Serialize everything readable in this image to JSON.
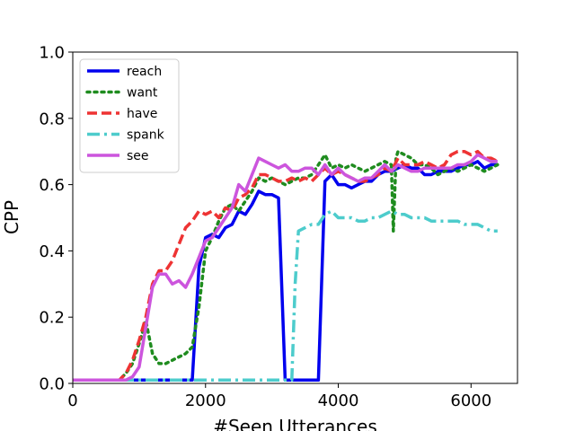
{
  "chart_data": {
    "type": "line",
    "xlabel": "#Seen Utterances",
    "ylabel": "CPP",
    "xlim": [
      0,
      6700
    ],
    "ylim": [
      0.0,
      1.0
    ],
    "xticks": [
      0,
      2000,
      4000,
      6000
    ],
    "xtick_labels": [
      "0",
      "2000",
      "4000",
      "6000"
    ],
    "yticks": [
      0.0,
      0.2,
      0.4,
      0.6,
      0.8,
      1.0
    ],
    "ytick_labels": [
      "0.0",
      "0.2",
      "0.4",
      "0.6",
      "0.8",
      "1.0"
    ],
    "grid": false,
    "legend_position": "top-left",
    "series": [
      {
        "name": "reach",
        "color": "#0000ee",
        "dash": "solid",
        "points": [
          [
            0,
            0.01
          ],
          [
            1800,
            0.01
          ],
          [
            1900,
            0.35
          ],
          [
            2000,
            0.44
          ],
          [
            2100,
            0.45
          ],
          [
            2200,
            0.44
          ],
          [
            2300,
            0.47
          ],
          [
            2400,
            0.48
          ],
          [
            2500,
            0.52
          ],
          [
            2600,
            0.51
          ],
          [
            2700,
            0.54
          ],
          [
            2800,
            0.58
          ],
          [
            2900,
            0.57
          ],
          [
            3000,
            0.57
          ],
          [
            3100,
            0.56
          ],
          [
            3200,
            0.01
          ],
          [
            3700,
            0.01
          ],
          [
            3800,
            0.61
          ],
          [
            3900,
            0.63
          ],
          [
            4000,
            0.6
          ],
          [
            4100,
            0.6
          ],
          [
            4200,
            0.59
          ],
          [
            4300,
            0.6
          ],
          [
            4400,
            0.61
          ],
          [
            4500,
            0.61
          ],
          [
            4600,
            0.63
          ],
          [
            4700,
            0.64
          ],
          [
            4800,
            0.64
          ],
          [
            4900,
            0.65
          ],
          [
            5000,
            0.66
          ],
          [
            5100,
            0.65
          ],
          [
            5200,
            0.65
          ],
          [
            5300,
            0.63
          ],
          [
            5400,
            0.63
          ],
          [
            5500,
            0.64
          ],
          [
            5600,
            0.64
          ],
          [
            5700,
            0.64
          ],
          [
            5800,
            0.65
          ],
          [
            5900,
            0.66
          ],
          [
            6000,
            0.66
          ],
          [
            6100,
            0.67
          ],
          [
            6200,
            0.65
          ],
          [
            6300,
            0.66
          ],
          [
            6400,
            0.66
          ]
        ]
      },
      {
        "name": "want",
        "color": "#1f8c1f",
        "dash": "dotted",
        "points": [
          [
            0,
            0.01
          ],
          [
            700,
            0.01
          ],
          [
            800,
            0.03
          ],
          [
            900,
            0.06
          ],
          [
            1000,
            0.12
          ],
          [
            1100,
            0.19
          ],
          [
            1200,
            0.09
          ],
          [
            1300,
            0.06
          ],
          [
            1400,
            0.06
          ],
          [
            1500,
            0.07
          ],
          [
            1600,
            0.08
          ],
          [
            1700,
            0.09
          ],
          [
            1800,
            0.11
          ],
          [
            1900,
            0.23
          ],
          [
            2000,
            0.4
          ],
          [
            2100,
            0.44
          ],
          [
            2200,
            0.49
          ],
          [
            2300,
            0.53
          ],
          [
            2400,
            0.54
          ],
          [
            2500,
            0.52
          ],
          [
            2600,
            0.55
          ],
          [
            2700,
            0.58
          ],
          [
            2800,
            0.62
          ],
          [
            2900,
            0.61
          ],
          [
            3000,
            0.62
          ],
          [
            3100,
            0.61
          ],
          [
            3200,
            0.6
          ],
          [
            3300,
            0.61
          ],
          [
            3400,
            0.62
          ],
          [
            3500,
            0.62
          ],
          [
            3600,
            0.63
          ],
          [
            3700,
            0.66
          ],
          [
            3800,
            0.69
          ],
          [
            3900,
            0.65
          ],
          [
            4000,
            0.66
          ],
          [
            4100,
            0.65
          ],
          [
            4200,
            0.66
          ],
          [
            4300,
            0.65
          ],
          [
            4400,
            0.64
          ],
          [
            4500,
            0.65
          ],
          [
            4600,
            0.66
          ],
          [
            4700,
            0.67
          ],
          [
            4800,
            0.66
          ],
          [
            4830,
            0.46
          ],
          [
            4870,
            0.68
          ],
          [
            4900,
            0.7
          ],
          [
            5000,
            0.69
          ],
          [
            5100,
            0.68
          ],
          [
            5200,
            0.66
          ],
          [
            5300,
            0.66
          ],
          [
            5400,
            0.65
          ],
          [
            5500,
            0.63
          ],
          [
            5600,
            0.64
          ],
          [
            5700,
            0.65
          ],
          [
            5800,
            0.64
          ],
          [
            5900,
            0.65
          ],
          [
            6000,
            0.66
          ],
          [
            6100,
            0.65
          ],
          [
            6200,
            0.64
          ],
          [
            6300,
            0.65
          ],
          [
            6400,
            0.66
          ]
        ]
      },
      {
        "name": "have",
        "color": "#ee3333",
        "dash": "dashed",
        "points": [
          [
            0,
            0.01
          ],
          [
            700,
            0.01
          ],
          [
            800,
            0.03
          ],
          [
            900,
            0.07
          ],
          [
            1000,
            0.13
          ],
          [
            1100,
            0.2
          ],
          [
            1200,
            0.3
          ],
          [
            1300,
            0.34
          ],
          [
            1400,
            0.34
          ],
          [
            1500,
            0.37
          ],
          [
            1600,
            0.42
          ],
          [
            1700,
            0.47
          ],
          [
            1800,
            0.49
          ],
          [
            1900,
            0.52
          ],
          [
            2000,
            0.51
          ],
          [
            2100,
            0.52
          ],
          [
            2200,
            0.5
          ],
          [
            2300,
            0.53
          ],
          [
            2400,
            0.52
          ],
          [
            2500,
            0.56
          ],
          [
            2600,
            0.57
          ],
          [
            2700,
            0.59
          ],
          [
            2800,
            0.63
          ],
          [
            2900,
            0.63
          ],
          [
            3000,
            0.62
          ],
          [
            3100,
            0.61
          ],
          [
            3200,
            0.61
          ],
          [
            3300,
            0.62
          ],
          [
            3400,
            0.61
          ],
          [
            3500,
            0.62
          ],
          [
            3600,
            0.61
          ],
          [
            3700,
            0.63
          ],
          [
            3800,
            0.65
          ],
          [
            3900,
            0.63
          ],
          [
            4000,
            0.64
          ],
          [
            4100,
            0.63
          ],
          [
            4200,
            0.62
          ],
          [
            4300,
            0.61
          ],
          [
            4400,
            0.61
          ],
          [
            4500,
            0.62
          ],
          [
            4600,
            0.63
          ],
          [
            4700,
            0.65
          ],
          [
            4800,
            0.64
          ],
          [
            4900,
            0.68
          ],
          [
            5000,
            0.66
          ],
          [
            5100,
            0.66
          ],
          [
            5200,
            0.66
          ],
          [
            5300,
            0.67
          ],
          [
            5400,
            0.66
          ],
          [
            5500,
            0.65
          ],
          [
            5600,
            0.66
          ],
          [
            5700,
            0.69
          ],
          [
            5800,
            0.7
          ],
          [
            5900,
            0.7
          ],
          [
            6000,
            0.69
          ],
          [
            6100,
            0.7
          ],
          [
            6200,
            0.68
          ],
          [
            6300,
            0.68
          ],
          [
            6400,
            0.67
          ]
        ]
      },
      {
        "name": "spank",
        "color": "#4dcccc",
        "dash": "dashdot",
        "points": [
          [
            0,
            0.01
          ],
          [
            3300,
            0.01
          ],
          [
            3350,
            0.3
          ],
          [
            3400,
            0.46
          ],
          [
            3500,
            0.47
          ],
          [
            3600,
            0.48
          ],
          [
            3700,
            0.48
          ],
          [
            3800,
            0.51
          ],
          [
            3900,
            0.52
          ],
          [
            4000,
            0.5
          ],
          [
            4100,
            0.5
          ],
          [
            4200,
            0.5
          ],
          [
            4300,
            0.49
          ],
          [
            4400,
            0.49
          ],
          [
            4500,
            0.5
          ],
          [
            4600,
            0.5
          ],
          [
            4700,
            0.51
          ],
          [
            4800,
            0.52
          ],
          [
            4900,
            0.51
          ],
          [
            5000,
            0.51
          ],
          [
            5100,
            0.5
          ],
          [
            5200,
            0.5
          ],
          [
            5300,
            0.5
          ],
          [
            5400,
            0.49
          ],
          [
            5500,
            0.49
          ],
          [
            5600,
            0.49
          ],
          [
            5700,
            0.49
          ],
          [
            5800,
            0.49
          ],
          [
            5900,
            0.48
          ],
          [
            6000,
            0.48
          ],
          [
            6100,
            0.48
          ],
          [
            6200,
            0.47
          ],
          [
            6300,
            0.46
          ],
          [
            6400,
            0.46
          ]
        ]
      },
      {
        "name": "see",
        "color": "#cc55dd",
        "dash": "solid",
        "points": [
          [
            0,
            0.01
          ],
          [
            700,
            0.01
          ],
          [
            800,
            0.01
          ],
          [
            900,
            0.02
          ],
          [
            1000,
            0.05
          ],
          [
            1100,
            0.17
          ],
          [
            1200,
            0.29
          ],
          [
            1300,
            0.33
          ],
          [
            1400,
            0.33
          ],
          [
            1500,
            0.3
          ],
          [
            1600,
            0.31
          ],
          [
            1700,
            0.29
          ],
          [
            1800,
            0.33
          ],
          [
            1900,
            0.38
          ],
          [
            2000,
            0.43
          ],
          [
            2100,
            0.44
          ],
          [
            2200,
            0.47
          ],
          [
            2300,
            0.5
          ],
          [
            2400,
            0.53
          ],
          [
            2500,
            0.6
          ],
          [
            2600,
            0.58
          ],
          [
            2700,
            0.63
          ],
          [
            2800,
            0.68
          ],
          [
            2900,
            0.67
          ],
          [
            3000,
            0.66
          ],
          [
            3100,
            0.65
          ],
          [
            3200,
            0.66
          ],
          [
            3300,
            0.64
          ],
          [
            3400,
            0.64
          ],
          [
            3500,
            0.65
          ],
          [
            3600,
            0.65
          ],
          [
            3700,
            0.63
          ],
          [
            3800,
            0.66
          ],
          [
            3900,
            0.63
          ],
          [
            4000,
            0.65
          ],
          [
            4100,
            0.63
          ],
          [
            4200,
            0.62
          ],
          [
            4300,
            0.61
          ],
          [
            4400,
            0.62
          ],
          [
            4500,
            0.62
          ],
          [
            4600,
            0.64
          ],
          [
            4700,
            0.66
          ],
          [
            4800,
            0.64
          ],
          [
            4900,
            0.66
          ],
          [
            5000,
            0.65
          ],
          [
            5100,
            0.64
          ],
          [
            5200,
            0.64
          ],
          [
            5300,
            0.65
          ],
          [
            5400,
            0.65
          ],
          [
            5500,
            0.65
          ],
          [
            5600,
            0.65
          ],
          [
            5700,
            0.65
          ],
          [
            5800,
            0.66
          ],
          [
            5900,
            0.66
          ],
          [
            6000,
            0.67
          ],
          [
            6100,
            0.69
          ],
          [
            6200,
            0.68
          ],
          [
            6300,
            0.67
          ],
          [
            6400,
            0.67
          ]
        ]
      }
    ]
  }
}
